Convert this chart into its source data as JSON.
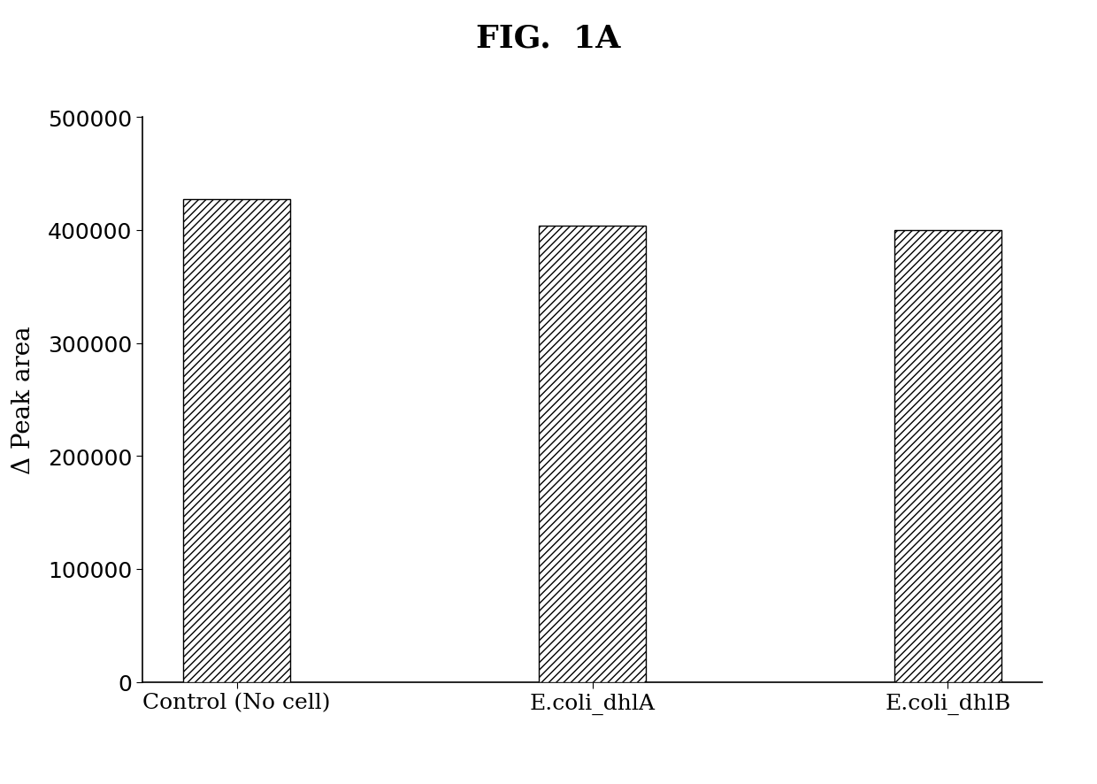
{
  "title": "FIG.  1A",
  "categories": [
    "Control (No cell)",
    "E.coli_dhlA",
    "E.coli_dhlB"
  ],
  "values": [
    427000,
    404000,
    400000
  ],
  "ylabel": "Δ Peak area",
  "ylim": [
    0,
    500000
  ],
  "yticks": [
    0,
    100000,
    200000,
    300000,
    400000,
    500000
  ],
  "bar_color": "white",
  "bar_edgecolor": "#000000",
  "hatch_pattern": "////",
  "background_color": "#ffffff",
  "title_fontsize": 26,
  "axis_label_fontsize": 20,
  "tick_fontsize": 18,
  "bar_width": 0.3
}
